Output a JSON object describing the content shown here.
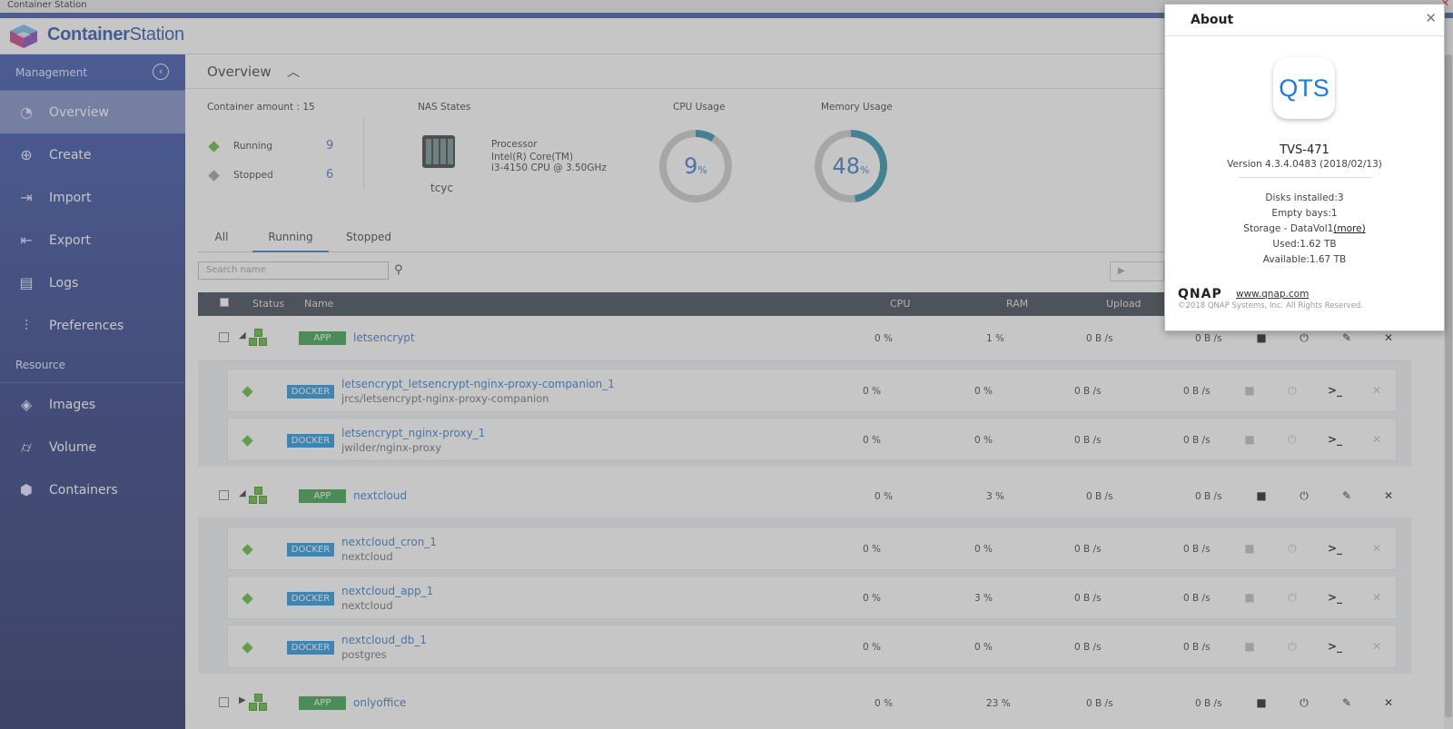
{
  "window": {
    "title": "Container Station"
  },
  "brand": {
    "part1": "Container",
    "part2": "Station"
  },
  "sidebar": {
    "management_label": "Management",
    "resource_label": "Resource",
    "management_items": [
      {
        "label": "Overview",
        "icon": "dashboard-icon"
      },
      {
        "label": "Create",
        "icon": "plus-circle-icon"
      },
      {
        "label": "Import",
        "icon": "import-icon"
      },
      {
        "label": "Export",
        "icon": "export-icon"
      },
      {
        "label": "Logs",
        "icon": "document-icon"
      },
      {
        "label": "Preferences",
        "icon": "sliders-icon"
      }
    ],
    "resource_items": [
      {
        "label": "Images",
        "icon": "layers-icon"
      },
      {
        "label": "Volume",
        "icon": "cylinder-icon"
      },
      {
        "label": "Containers",
        "icon": "cube-icon"
      }
    ]
  },
  "overview": {
    "title": "Overview",
    "container_amount": "Container amount : 15",
    "running_label": "Running",
    "running_count": "9",
    "stopped_label": "Stopped",
    "stopped_count": "6",
    "nas_states_label": "NAS States",
    "nas_name": "tcyc",
    "processor_label": "Processor",
    "processor_line1": "Intel(R) Core(TM)",
    "processor_line2": "i3-4150 CPU @ 3.50GHz",
    "cpu_label": "CPU Usage",
    "cpu_value": "9",
    "memory_label": "Memory Usage",
    "memory_value": "48",
    "percent_sign": "%"
  },
  "tabs": [
    "All",
    "Running",
    "Stopped"
  ],
  "search": {
    "placeholder": "Search name"
  },
  "table": {
    "headers": {
      "status": "Status",
      "name": "Name",
      "cpu": "CPU",
      "ram": "RAM",
      "upload": "Upload"
    },
    "apps": [
      {
        "type": "APP",
        "name": "letsencrypt",
        "cpu": "0 %",
        "ram": "1 %",
        "upload": "0 B /s",
        "download": "0 B /s",
        "children": [
          {
            "type": "DOCKER",
            "name": "letsencrypt_letsencrypt-nginx-proxy-companion_1",
            "image": "jrcs/letsencrypt-nginx-proxy-companion",
            "cpu": "0 %",
            "ram": "0 %",
            "upload": "0 B /s",
            "download": "0 B /s"
          },
          {
            "type": "DOCKER",
            "name": "letsencrypt_nginx-proxy_1",
            "image": "jwilder/nginx-proxy",
            "cpu": "0 %",
            "ram": "0 %",
            "upload": "0 B /s",
            "download": "0 B /s"
          }
        ]
      },
      {
        "type": "APP",
        "name": "nextcloud",
        "cpu": "0 %",
        "ram": "3 %",
        "upload": "0 B /s",
        "download": "0 B /s",
        "children": [
          {
            "type": "DOCKER",
            "name": "nextcloud_cron_1",
            "image": "nextcloud",
            "cpu": "0 %",
            "ram": "0 %",
            "upload": "0 B /s",
            "download": "0 B /s"
          },
          {
            "type": "DOCKER",
            "name": "nextcloud_app_1",
            "image": "nextcloud",
            "cpu": "0 %",
            "ram": "3 %",
            "upload": "0 B /s",
            "download": "0 B /s"
          },
          {
            "type": "DOCKER",
            "name": "nextcloud_db_1",
            "image": "postgres",
            "cpu": "0 %",
            "ram": "0 %",
            "upload": "0 B /s",
            "download": "0 B /s"
          }
        ]
      },
      {
        "type": "APP",
        "name": "onlyoffice",
        "cpu": "0 %",
        "ram": "23 %",
        "upload": "0 B /s",
        "download": "0 B /s",
        "children": []
      }
    ]
  },
  "about": {
    "title": "About",
    "logo_text": "QTS",
    "model": "TVS-471",
    "version": "Version 4.3.4.0483 (2018/02/13)",
    "disks": "Disks installed:3",
    "empty_bays": "Empty bays:1",
    "storage_prefix": "Storage - DataVol1",
    "storage_more": "(more)",
    "used": "Used:1.62 TB",
    "available": "Available:1.67 TB",
    "qnap_logo": "QNAP",
    "url": "www.qnap.com",
    "copyright": "©2018 QNAP Systems, Inc. All Rights Reserved."
  },
  "colors": {
    "accent": "#2a73c8",
    "sidebar": "#2d4aa8",
    "app_badge": "#2e9b3e",
    "docker_badge": "#1b8fd6",
    "ring": "#1f8aa8"
  }
}
